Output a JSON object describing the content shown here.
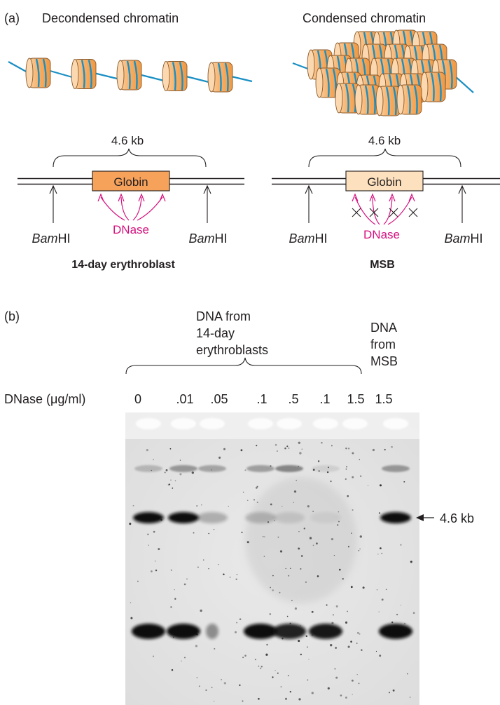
{
  "panel_a": {
    "label": "(a)",
    "left": {
      "title": "Decondensed chromatin",
      "span_label": "4.6 kb",
      "gene_label": "Globin",
      "site_left": {
        "italic": "Bam",
        "rest": "HI"
      },
      "site_right": {
        "italic": "Bam",
        "rest": "HI"
      },
      "enzyme_label": "DNase",
      "cell_label": "14-day erythroblast",
      "gene_fill": "#f6a25b",
      "nucleosome_count": 5
    },
    "right": {
      "title": "Condensed chromatin",
      "span_label": "4.6 kb",
      "gene_label": "Globin",
      "site_left": {
        "italic": "Bam",
        "rest": "HI"
      },
      "site_right": {
        "italic": "Bam",
        "rest": "HI"
      },
      "enzyme_label": "DNase",
      "cell_label": "MSB",
      "gene_fill": "#fde0bd"
    }
  },
  "panel_b": {
    "label": "(b)",
    "group_left": {
      "line1": "DNA from",
      "line2": "14-day",
      "line3": "erythroblasts"
    },
    "group_right": {
      "line1": "DNA",
      "line2": "from",
      "line3": "MSB"
    },
    "row_label": "DNase (μg/ml)",
    "lanes": [
      {
        "conc": "0",
        "top_band": 0.35,
        "mid_band": 1.0,
        "bottom_band": 1.0
      },
      {
        "conc": ".01",
        "top_band": 0.6,
        "mid_band": 1.0,
        "bottom_band": 1.0
      },
      {
        "conc": ".05",
        "top_band": 0.5,
        "mid_band": 0.25,
        "bottom_band": 0.4
      },
      {
        "conc": ".1",
        "top_band": 0.55,
        "mid_band": 0.2,
        "bottom_band": 1.0
      },
      {
        "conc": ".5",
        "top_band": 0.75,
        "mid_band": 0.1,
        "bottom_band": 0.9
      },
      {
        "conc": ".1",
        "top_band": 0.15,
        "mid_band": 0.05,
        "bottom_band": 0.95
      },
      {
        "conc": "1.5",
        "top_band": 0.0,
        "mid_band": 0.0,
        "bottom_band": 0.0
      },
      {
        "conc": "1.5",
        "top_band": 0.6,
        "mid_band": 1.0,
        "bottom_band": 1.0
      }
    ],
    "marker_label": "4.6 kb"
  },
  "colors": {
    "nucleosome_fill": "#f6b26b",
    "nucleosome_stroke": "#8a5a2b",
    "dna_strand": "#1a8fc4",
    "dnase_arrow": "#d6127f"
  }
}
